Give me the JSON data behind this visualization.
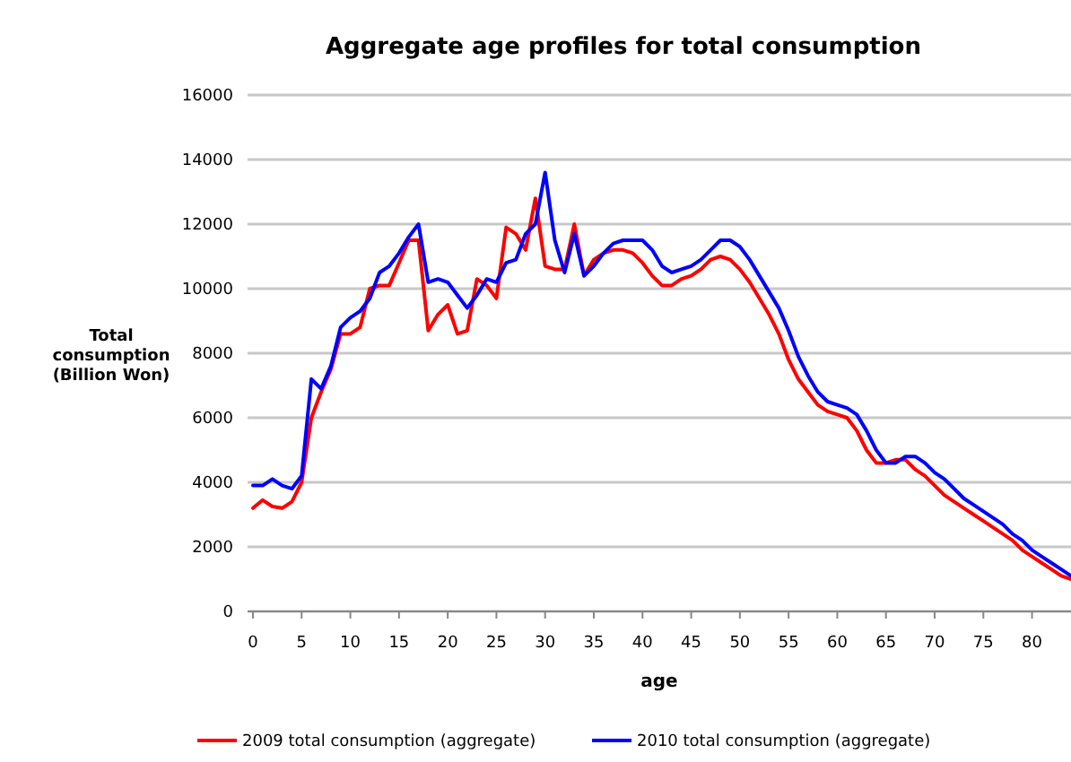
{
  "chart_data": {
    "type": "line",
    "title": "Aggregate age profiles for total consumption",
    "xlabel": "age",
    "ylabel": "Total consumption (Billion Won)",
    "x": [
      0,
      1,
      2,
      3,
      4,
      5,
      6,
      7,
      8,
      9,
      10,
      11,
      12,
      13,
      14,
      15,
      16,
      17,
      18,
      19,
      20,
      21,
      22,
      23,
      24,
      25,
      26,
      27,
      28,
      29,
      30,
      31,
      32,
      33,
      34,
      35,
      36,
      37,
      38,
      39,
      40,
      41,
      42,
      43,
      44,
      45,
      46,
      47,
      48,
      49,
      50,
      51,
      52,
      53,
      54,
      55,
      56,
      57,
      58,
      59,
      60,
      61,
      62,
      63,
      64,
      65,
      66,
      67,
      68,
      69,
      70,
      71,
      72,
      73,
      74,
      75,
      76,
      77,
      78,
      79,
      80,
      81,
      82,
      83,
      84
    ],
    "series": [
      {
        "name": "2009 total consumption (aggregate)",
        "color": "#ff0000",
        "values": [
          3200,
          3450,
          3250,
          3200,
          3400,
          4000,
          6000,
          6800,
          7500,
          8600,
          8600,
          8800,
          10000,
          10100,
          10100,
          10800,
          11500,
          11500,
          8700,
          9200,
          9500,
          8600,
          8700,
          10300,
          10100,
          9700,
          11900,
          11700,
          11200,
          12800,
          10700,
          10600,
          10600,
          12000,
          10400,
          10900,
          11100,
          11200,
          11200,
          11100,
          10800,
          10400,
          10100,
          10100,
          10300,
          10400,
          10600,
          10900,
          11000,
          10900,
          10600,
          10200,
          9700,
          9200,
          8600,
          7800,
          7200,
          6800,
          6400,
          6200,
          6100,
          6000,
          5600,
          5000,
          4600,
          4600,
          4700,
          4700,
          4400,
          4200,
          3900,
          3600,
          3400,
          3200,
          3000,
          2800,
          2600,
          2400,
          2200,
          1900,
          1700,
          1500,
          1300,
          1100,
          1000
        ]
      },
      {
        "name": "2010 total consumption (aggregate)",
        "color": "#0000ff",
        "values": [
          3900,
          3900,
          4100,
          3900,
          3800,
          4200,
          7200,
          6900,
          7600,
          8800,
          9100,
          9300,
          9700,
          10500,
          10700,
          11100,
          11600,
          12000,
          10200,
          10300,
          10200,
          9800,
          9400,
          9800,
          10300,
          10200,
          10800,
          10900,
          11700,
          12000,
          13600,
          11500,
          10500,
          11700,
          10400,
          10700,
          11100,
          11400,
          11500,
          11500,
          11500,
          11200,
          10700,
          10500,
          10600,
          10700,
          10900,
          11200,
          11500,
          11500,
          11300,
          10900,
          10400,
          9900,
          9400,
          8700,
          7900,
          7300,
          6800,
          6500,
          6400,
          6300,
          6100,
          5600,
          5000,
          4600,
          4600,
          4800,
          4800,
          4600,
          4300,
          4100,
          3800,
          3500,
          3300,
          3100,
          2900,
          2700,
          2400,
          2200,
          1900,
          1700,
          1500,
          1300,
          1100
        ]
      }
    ],
    "xlim": [
      0,
      84
    ],
    "xticks": [
      0,
      5,
      10,
      15,
      20,
      25,
      30,
      35,
      40,
      45,
      50,
      55,
      60,
      65,
      70,
      75,
      80
    ],
    "ylim": [
      0,
      16000
    ],
    "yticks": [
      0,
      2000,
      4000,
      6000,
      8000,
      10000,
      12000,
      14000,
      16000
    ],
    "grid": "y",
    "legend": "bottom",
    "marker": "none",
    "line_style": "solid"
  }
}
